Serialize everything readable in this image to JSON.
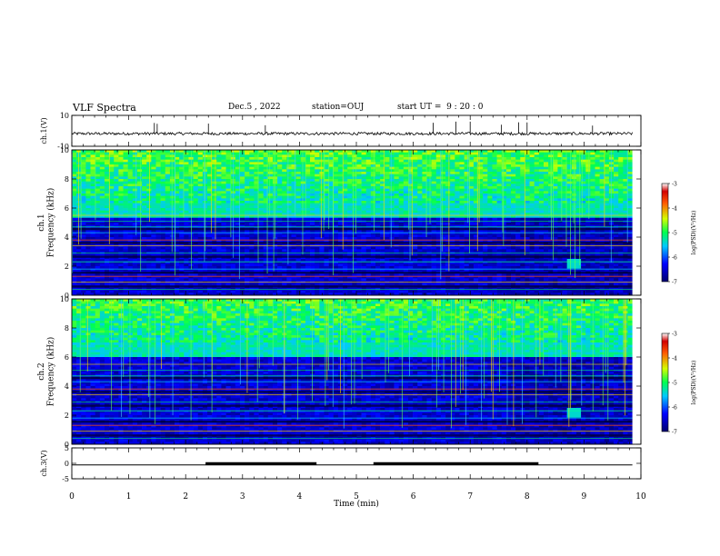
{
  "header": {
    "title": "VLF Spectra",
    "date": "Dec.5 , 2022",
    "station": "station=OUJ",
    "start": "start UT =  9 : 20 : 0"
  },
  "chart_data": [
    {
      "type": "line",
      "id": "ch1-waveform",
      "ylabel": "ch.1(V)",
      "ylim": [
        -10,
        10
      ],
      "yticks": [
        10,
        -10
      ],
      "xlim": [
        0,
        10
      ],
      "approx_level": -1.8,
      "approx_noise_amp": 0.9,
      "spikes_x": [
        1.45,
        1.5,
        2.4,
        3.4,
        6.35,
        6.75,
        7.0,
        7.55,
        7.85,
        8.0,
        9.15
      ]
    },
    {
      "type": "heatmap",
      "id": "ch1-spectrogram",
      "ylabel": "ch.1 Frequency (kHz)",
      "ylim": [
        0,
        10
      ],
      "yticks": [
        0,
        2,
        4,
        6,
        8,
        10
      ],
      "xlim": [
        0,
        9.85
      ],
      "colorbar": {
        "label": "log(PSD)(V²/Hz)",
        "range": [
          -7,
          -3
        ],
        "ticks": [
          -3,
          -4,
          -5,
          -6,
          -7
        ]
      },
      "features": {
        "band_boundary_khz": 5.8,
        "change_time_min": 7.65,
        "spot_time_min": 8.85,
        "spot_freq_khz": 2.2
      }
    },
    {
      "type": "heatmap",
      "id": "ch2-spectrogram",
      "ylabel": "ch.2 Frequency (kHz)",
      "ylim": [
        0,
        10
      ],
      "yticks": [
        0,
        2,
        4,
        6,
        8,
        10
      ],
      "xlim": [
        0,
        9.85
      ],
      "colorbar": {
        "label": "log(PSD)(V²/Hz)",
        "range": [
          -7,
          -3
        ],
        "ticks": [
          -3,
          -4,
          -5,
          -6,
          -7
        ]
      },
      "features": {
        "band_boundary_khz": 6.5,
        "change_time_min": 7.65,
        "spot_time_min": 8.85,
        "spot_freq_khz": 2.2
      }
    },
    {
      "type": "line",
      "id": "ch3-trace",
      "ylabel": "ch.3(V)",
      "ylim": [
        -5,
        5
      ],
      "yticks": [
        5,
        0,
        -5
      ],
      "xlim": [
        0,
        10
      ],
      "level": -0.5,
      "thick_segments": [
        [
          2.35,
          4.3
        ],
        [
          5.3,
          8.2
        ]
      ]
    }
  ],
  "xaxis": {
    "label": "Time (min)",
    "ticks": [
      "0",
      "1",
      "2",
      "3",
      "4",
      "5",
      "6",
      "7",
      "8",
      "9",
      "10"
    ],
    "range": [
      0,
      10
    ]
  }
}
